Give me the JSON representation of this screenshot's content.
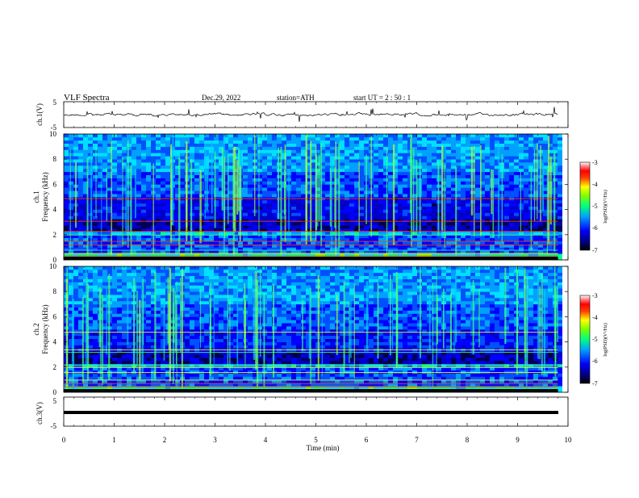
{
  "header": {
    "title": "VLF  Spectra",
    "date": "Dec.29, 2022",
    "station": "station=ATH",
    "start": "start  UT  =   2  : 50 : 1"
  },
  "chart_data": [
    {
      "type": "line",
      "name": "ch1-waveform",
      "ylabel": "ch.1(V)",
      "ylim": [
        -5,
        5
      ],
      "yticks": [
        "5",
        "-5"
      ],
      "xlim": [
        0,
        10
      ],
      "baseline": 0,
      "color": "#000000"
    },
    {
      "type": "heatmap",
      "name": "ch1-spectrogram",
      "ylabel": "ch.1\nFrequency  (kHz)",
      "ylabel_channel": "ch.1",
      "ylabel_freq": "Frequency  (kHz)",
      "ylim": [
        0,
        10
      ],
      "yticks": [
        "0",
        "2",
        "4",
        "6",
        "8",
        "10"
      ],
      "xlim": [
        0,
        10
      ],
      "data_end_min": 9.8,
      "colorbar": {
        "label": "log(PSD)(V²/Hz)",
        "min": -7,
        "max": -3,
        "ticks": [
          "-3",
          "-4",
          "-5",
          "-6",
          "-7"
        ]
      }
    },
    {
      "type": "heatmap",
      "name": "ch2-spectrogram",
      "ylabel": "ch.2\nFrequency  (kHz)",
      "ylabel_channel": "ch.2",
      "ylabel_freq": "Frequency  (kHz)",
      "ylim": [
        0,
        10
      ],
      "yticks": [
        "0",
        "2",
        "4",
        "6",
        "8",
        "10"
      ],
      "xlim": [
        0,
        10
      ],
      "data_end_min": 9.8,
      "colorbar": {
        "label": "log(PSD)(V²/Hz)",
        "min": -7,
        "max": -3,
        "ticks": [
          "-3",
          "-4",
          "-5",
          "-6",
          "-7"
        ]
      }
    },
    {
      "type": "line",
      "name": "ch3-waveform",
      "ylabel": "ch.3(V)",
      "ylim": [
        -5,
        5
      ],
      "yticks": [
        "5",
        "-5"
      ],
      "xlim": [
        0,
        10
      ],
      "baseline": 0,
      "color": "#000000"
    }
  ],
  "xaxis": {
    "label": "Time  (min)",
    "ticks": [
      "0",
      "1",
      "2",
      "3",
      "4",
      "5",
      "6",
      "7",
      "8",
      "9",
      "10"
    ]
  }
}
